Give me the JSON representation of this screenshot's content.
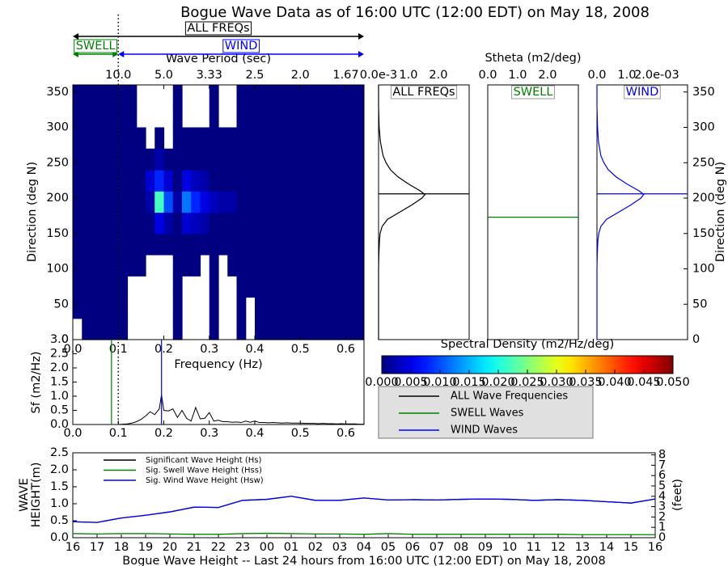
{
  "chart_data": [
    {
      "type": "heatmap",
      "title": "Bogue Wave Data as of 16:00 UTC (12:00 EDT) on May 18, 2008",
      "x_label": "Frequency (Hz)",
      "y_label": "Direction (deg N)",
      "x2_label": "Wave Period (sec)",
      "xlim": [
        0,
        0.64
      ],
      "ylim": [
        0,
        360
      ],
      "xticks": [
        {
          "value": 0,
          "label": "0.0"
        },
        0.1,
        0.2,
        0.3,
        0.4,
        0.5,
        0.6
      ],
      "x2ticks": [
        {
          "value": 0.1,
          "label": "10.0"
        },
        {
          "value": 0.2,
          "label": "5.0"
        },
        {
          "value": 0.3,
          "label": "3.33"
        },
        {
          "value": 0.4,
          "label": "2.5"
        },
        {
          "value": 0.5,
          "label": "2.0"
        },
        {
          "value": 0.6,
          "label": "1.67"
        }
      ],
      "yticks": [
        0,
        50,
        100,
        150,
        200,
        250,
        300,
        350
      ],
      "x_edges": [
        0,
        0.02,
        0.04,
        0.06,
        0.08,
        0.1,
        0.12,
        0.14,
        0.16,
        0.18,
        0.2,
        0.22,
        0.24,
        0.26,
        0.28,
        0.3,
        0.32,
        0.34,
        0.36,
        0.38,
        0.4,
        0.42,
        0.44,
        0.46,
        0.48,
        0.5,
        0.52,
        0.54,
        0.56,
        0.58,
        0.6,
        0.62,
        0.64
      ],
      "y_edges": [
        0,
        30,
        60,
        90,
        120,
        150,
        180,
        210,
        240,
        270,
        300,
        330,
        360
      ],
      "values": [
        [
          null,
          0,
          0,
          0,
          0,
          0,
          0,
          0,
          0,
          0,
          0,
          0
        ],
        [
          0,
          0,
          0,
          0,
          0,
          0,
          0,
          0,
          0,
          0,
          0,
          0
        ],
        [
          0,
          0,
          0,
          0,
          0,
          0,
          0,
          0,
          0,
          0,
          0,
          0
        ],
        [
          0,
          0,
          0,
          0,
          0,
          0,
          0,
          0,
          0,
          0,
          0,
          0
        ],
        [
          0,
          0,
          0,
          0,
          0,
          0,
          0,
          0,
          0,
          0,
          0,
          0
        ],
        [
          0,
          0,
          0,
          0,
          0,
          0,
          0,
          0,
          0,
          0,
          0,
          0
        ],
        [
          null,
          null,
          null,
          0,
          0,
          0,
          0,
          0,
          0,
          0,
          0,
          0
        ],
        [
          null,
          null,
          null,
          0,
          0,
          0,
          0,
          0,
          0,
          0,
          null,
          null
        ],
        [
          null,
          null,
          null,
          null,
          0,
          0,
          0.002,
          0.004,
          0,
          null,
          null,
          null
        ],
        [
          null,
          null,
          null,
          null,
          0,
          0.005,
          0.022,
          0.008,
          0.002,
          0,
          null,
          null
        ],
        [
          null,
          null,
          null,
          null,
          0,
          0.002,
          0.01,
          0.004,
          0,
          null,
          null,
          null
        ],
        [
          0,
          0,
          0,
          0,
          0,
          0,
          0.002,
          0,
          0,
          0,
          0,
          0
        ],
        [
          null,
          null,
          null,
          0,
          0,
          0.004,
          0.012,
          0.005,
          0,
          0,
          null,
          null
        ],
        [
          null,
          null,
          null,
          0,
          0,
          0.003,
          0.008,
          0.003,
          0,
          0,
          null,
          null
        ],
        [
          null,
          null,
          null,
          null,
          0,
          0.002,
          0.005,
          0.002,
          0,
          0,
          null,
          null
        ],
        [
          0,
          0,
          0,
          0,
          0,
          0,
          0.003,
          0,
          0,
          0,
          0,
          0
        ],
        [
          null,
          null,
          null,
          null,
          0,
          0,
          0.002,
          0,
          0,
          0,
          null,
          null
        ],
        [
          null,
          null,
          null,
          0,
          0,
          0,
          0.002,
          0,
          0,
          0,
          null,
          null
        ],
        [
          0,
          0,
          0,
          0,
          0,
          0,
          0,
          0,
          0,
          0,
          0,
          0
        ],
        [
          null,
          null,
          0,
          0,
          0,
          0,
          0,
          0,
          0,
          0,
          0,
          0
        ],
        [
          0,
          0,
          0,
          0,
          0,
          0,
          0,
          0,
          0,
          0,
          0,
          0
        ],
        [
          0,
          0,
          0,
          0,
          0,
          0,
          0,
          0,
          0,
          0,
          0,
          0
        ],
        [
          0,
          0,
          0,
          0,
          0,
          0,
          0,
          0,
          0,
          0,
          0,
          0
        ],
        [
          0,
          0,
          0,
          0,
          0,
          0,
          0,
          0,
          0,
          0,
          0,
          0
        ],
        [
          0,
          0,
          0,
          0,
          0,
          0,
          0,
          0,
          0,
          0,
          0,
          0
        ],
        [
          0,
          0,
          0,
          0,
          0,
          0,
          0,
          0,
          0,
          0,
          0,
          0
        ],
        [
          0,
          0,
          0,
          0,
          0,
          0,
          0,
          0,
          0,
          0,
          0,
          0
        ],
        [
          0,
          0,
          0,
          0,
          0,
          0,
          0,
          0,
          0,
          0,
          0,
          0
        ],
        [
          0,
          0,
          0,
          0,
          0,
          0,
          0,
          0,
          0,
          0,
          0,
          0
        ],
        [
          0,
          0,
          0,
          0,
          0,
          0,
          0,
          0,
          0,
          0,
          0,
          0
        ],
        [
          0,
          0,
          0,
          0,
          0,
          0,
          0,
          0,
          0,
          0,
          0,
          0
        ],
        [
          0,
          0,
          0,
          0,
          0,
          0,
          0,
          0,
          0,
          0,
          0,
          0
        ]
      ],
      "colorbar": {
        "title": "Spectral Density (m2/Hz/deg)",
        "colormap": "jet",
        "lim": [
          0,
          0.05
        ],
        "ticks": [
          {
            "value": 0,
            "label": "0.000"
          },
          {
            "value": 0.005,
            "label": "0.005"
          },
          {
            "value": 0.01,
            "label": "0.010"
          },
          {
            "value": 0.015,
            "label": "0.015"
          },
          {
            "value": 0.02,
            "label": "0.020"
          },
          {
            "value": 0.025,
            "label": "0.025"
          },
          {
            "value": 0.03,
            "label": "0.030"
          },
          {
            "value": 0.035,
            "label": "0.035"
          },
          {
            "value": 0.04,
            "label": "0.040"
          },
          {
            "value": 0.045,
            "label": "0.045"
          },
          {
            "value": 0.05,
            "label": "0.050"
          }
        ]
      },
      "separation_frequency": 0.1,
      "bands": [
        {
          "label": "ALL FREQs",
          "range": [
            0,
            0.64
          ],
          "color": "#000000"
        },
        {
          "label": "SWELL",
          "range": [
            0,
            0.1
          ],
          "color": "#008000"
        },
        {
          "label": "WIND",
          "range": [
            0.1,
            0.64
          ],
          "color": "#0000ff"
        }
      ]
    },
    {
      "type": "profile",
      "title": "ALL FREQs",
      "color": "#000000",
      "xlim": [
        0,
        3.03
      ],
      "ylim": [
        0,
        360
      ],
      "xticks": [
        {
          "value": 0,
          "label": "0.0e-3"
        },
        {
          "value": 1,
          "label": "1.0"
        },
        {
          "value": 2,
          "label": "2.0"
        }
      ],
      "direction": [
        0,
        60,
        100,
        120,
        140,
        150,
        160,
        170,
        180,
        190,
        200,
        205,
        210,
        220,
        230,
        240,
        250,
        260,
        280,
        300,
        330,
        360
      ],
      "values": [
        0,
        0,
        0,
        0.01,
        0.03,
        0.05,
        0.12,
        0.3,
        0.7,
        1.1,
        1.45,
        1.55,
        1.4,
        1.0,
        0.65,
        0.4,
        0.25,
        0.15,
        0.06,
        0.02,
        0,
        0
      ],
      "peak_direction": 206
    },
    {
      "type": "profile",
      "title": "SWELL",
      "color": "#008000",
      "xlim": [
        0,
        3.03
      ],
      "ylim": [
        0,
        360
      ],
      "x_label": "Stheta (m2/deg)",
      "xticks": [
        {
          "value": 0,
          "label": "0.0"
        },
        {
          "value": 1,
          "label": "1.0"
        },
        {
          "value": 2,
          "label": "2.0"
        }
      ],
      "peak_direction": 173
    },
    {
      "type": "profile",
      "title": "WIND",
      "color": "#0000ff",
      "xlim": [
        0,
        3.03
      ],
      "ylim": [
        0,
        360
      ],
      "y_label": "Direction (deg N)",
      "xticks": [
        {
          "value": 0,
          "label": "0.0"
        },
        {
          "value": 1,
          "label": "1.0"
        },
        {
          "value": 2,
          "label": "2.0e-03"
        }
      ],
      "yticks": [
        0,
        50,
        100,
        150,
        200,
        250,
        300,
        350
      ],
      "direction": [
        0,
        60,
        100,
        120,
        140,
        150,
        160,
        170,
        180,
        190,
        200,
        205,
        210,
        220,
        230,
        240,
        250,
        260,
        280,
        300,
        330,
        360
      ],
      "values": [
        0,
        0,
        0,
        0.01,
        0.03,
        0.06,
        0.13,
        0.32,
        0.72,
        1.12,
        1.47,
        1.56,
        1.42,
        1.0,
        0.64,
        0.38,
        0.23,
        0.13,
        0.05,
        0.02,
        0,
        0
      ],
      "peak_direction": 206
    },
    {
      "type": "line",
      "y_label": "Sf (m2/Hz)",
      "color": "#000000",
      "xlim": [
        0,
        0.64
      ],
      "ylim": [
        0,
        3
      ],
      "xticks": [
        {
          "value": 0,
          "label": "0.0"
        },
        0.1,
        0.2,
        0.3,
        0.4,
        0.5,
        0.6
      ],
      "yticks": [
        {
          "value": 0,
          "label": "0.0"
        },
        0.5,
        {
          "value": 1,
          "label": "1.0"
        },
        1.5,
        {
          "value": 2,
          "label": "2.0"
        },
        2.5,
        {
          "value": 3,
          "label": "3.0"
        }
      ],
      "x": [
        0,
        0.01,
        0.02,
        0.03,
        0.04,
        0.05,
        0.06,
        0.07,
        0.08,
        0.09,
        0.1,
        0.11,
        0.12,
        0.13,
        0.14,
        0.15,
        0.16,
        0.17,
        0.18,
        0.19,
        0.195,
        0.2,
        0.21,
        0.22,
        0.23,
        0.24,
        0.25,
        0.26,
        0.27,
        0.28,
        0.29,
        0.3,
        0.31,
        0.32,
        0.33,
        0.34,
        0.35,
        0.36,
        0.37,
        0.38,
        0.39,
        0.4,
        0.41,
        0.42,
        0.43,
        0.44,
        0.45,
        0.46,
        0.47,
        0.48,
        0.49,
        0.5,
        0.51,
        0.52,
        0.53,
        0.54,
        0.55,
        0.56,
        0.57,
        0.58,
        0.59,
        0.6,
        0.61,
        0.62,
        0.63,
        0.64
      ],
      "values": [
        0,
        0,
        0,
        0,
        0,
        0,
        0,
        0,
        0,
        0,
        0,
        0.01,
        0.02,
        0.05,
        0.1,
        0.18,
        0.3,
        0.45,
        0.35,
        0.55,
        1.05,
        0.5,
        0.48,
        0.55,
        0.25,
        0.5,
        0.22,
        0.12,
        0.6,
        0.2,
        0.22,
        0.42,
        0.12,
        0.15,
        0.1,
        0.1,
        0.08,
        0.09,
        0.07,
        0.12,
        0.08,
        0.12,
        0.07,
        0.07,
        0.06,
        0.07,
        0.06,
        0.05,
        0.06,
        0.05,
        0.05,
        0.05,
        0.04,
        0.04,
        0.04,
        0.03,
        0.04,
        0.03,
        0.03,
        0.02,
        0.03,
        0.02,
        0.02,
        0.02,
        0.01,
        0.01
      ],
      "swell_peak_frequency": 0.085,
      "swell_color": "#008000",
      "wind_peak_frequency": 0.195,
      "wind_color": "#0000ff",
      "legend": [
        {
          "name": "ALL Wave Frequencies",
          "color": "#000000"
        },
        {
          "name": "SWELL Waves",
          "color": "#008000"
        },
        {
          "name": "WIND Waves",
          "color": "#0000ff"
        }
      ]
    },
    {
      "type": "line",
      "x_label": "Bogue Wave Height -- Last 24 hours from 16:00 UTC (12:00 EDT) on May 18, 2008",
      "y_label": [
        "WAVE",
        "HEIGHT(m)"
      ],
      "y2_label": "(feet)",
      "categories": [
        "16",
        "17",
        "18",
        "19",
        "20",
        "21",
        "22",
        "23",
        "00",
        "01",
        "02",
        "03",
        "04",
        "05",
        "06",
        "07",
        "08",
        "09",
        "10",
        "11",
        "12",
        "13",
        "14",
        "15",
        "16"
      ],
      "ylim": [
        0,
        2.5
      ],
      "yticks": [
        {
          "value": 0,
          "label": "0.0"
        },
        0.5,
        {
          "value": 1,
          "label": "1.0"
        },
        1.5,
        {
          "value": 2,
          "label": "2.0"
        },
        2.5
      ],
      "y2lim": [
        0,
        8.2
      ],
      "y2ticks": [
        0,
        1,
        2,
        3,
        4,
        5,
        6,
        7,
        8
      ],
      "series": [
        {
          "name": "Significant Wave Height (Hs)",
          "color": "#000000",
          "values": [
            0.47,
            0.45,
            0.58,
            0.66,
            0.76,
            0.9,
            0.89,
            1.1,
            1.13,
            1.22,
            1.1,
            1.1,
            1.17,
            1.11,
            1.12,
            1.11,
            1.13,
            1.14,
            1.13,
            1.1,
            1.12,
            1.1,
            1.06,
            1.02,
            1.14
          ]
        },
        {
          "name": "Sig. Swell Wave Height (Hss)",
          "color": "#008000",
          "values": [
            0.12,
            0.11,
            0.12,
            0.12,
            0.11,
            0.1,
            0.1,
            0.12,
            0.13,
            0.12,
            0.11,
            0.11,
            0.1,
            0.12,
            0.1,
            0.1,
            0.1,
            0.1,
            0.1,
            0.1,
            0.1,
            0.09,
            0.09,
            0.09,
            0.09
          ]
        },
        {
          "name": "Sig. Wind Wave Height (Hsw)",
          "color": "#0000ff",
          "values": [
            0.47,
            0.45,
            0.58,
            0.66,
            0.76,
            0.9,
            0.89,
            1.1,
            1.13,
            1.22,
            1.1,
            1.1,
            1.17,
            1.11,
            1.12,
            1.11,
            1.13,
            1.14,
            1.13,
            1.1,
            1.12,
            1.1,
            1.06,
            1.02,
            1.14
          ]
        }
      ]
    }
  ]
}
